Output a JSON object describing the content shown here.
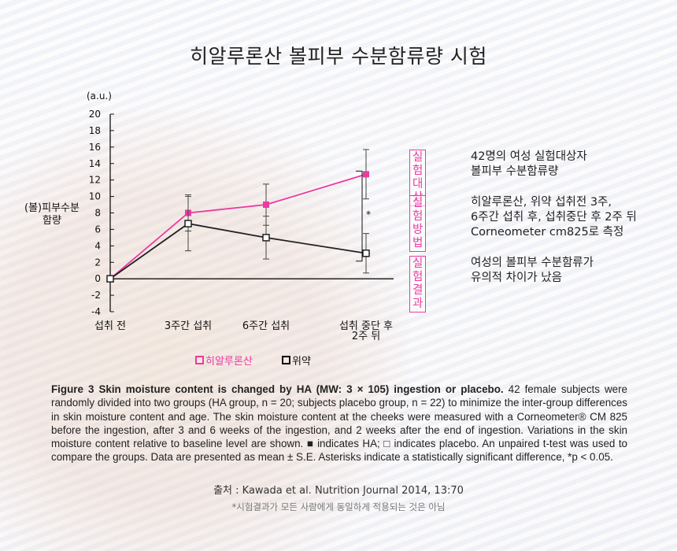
{
  "title": "히알루론산 볼피부 수분함류량 시험",
  "chart_data": {
    "type": "line",
    "categories": [
      "섭취 전",
      "3주간 섭취",
      "6주간 섭취",
      "섭취 중단 후\n2주 뒤"
    ],
    "series": [
      {
        "name": "히알루론산",
        "color": "#ec3aa0",
        "marker": "filled-square",
        "values": [
          0,
          8.0,
          9.0,
          12.7
        ],
        "error": [
          0,
          2.2,
          2.5,
          3.0
        ]
      },
      {
        "name": "위약",
        "color": "#222222",
        "marker": "open-square",
        "values": [
          0,
          6.7,
          5.0,
          3.1
        ],
        "error": [
          0,
          3.3,
          2.6,
          2.4
        ]
      }
    ],
    "ylabel": "(볼)피부수분\n함량",
    "yunit": "(a.u.)",
    "ylim": [
      -4,
      20
    ],
    "yticks": [
      -4,
      -2,
      0,
      2,
      4,
      6,
      8,
      10,
      12,
      14,
      16,
      18,
      20
    ],
    "significance": "*",
    "grid": false,
    "legend_position": "bottom"
  },
  "info": [
    {
      "tag": "실험대상",
      "text": "42명의 여성 실험대상자\n볼피부 수분함류량"
    },
    {
      "tag": "실험방법",
      "text": "히알루론산, 위약 섭취전 3주,\n6주간 섭취 후, 섭취중단 후 2주 뒤\nCorneometer cm825로 측정"
    },
    {
      "tag": "실험결과",
      "text": "여성의 볼피부 수분함류가\n유의적 차이가 났음"
    }
  ],
  "caption": {
    "bold": "Figure 3 Skin moisture content is changed by HA (MW: 3 × 105) ingestion or placebo.",
    "body": " 42 female subjects were randomly divided into two groups (HA group, n = 20; subjects placebo group, n = 22) to minimize the inter-group differences in skin moisture content and age. The skin moisture content at the cheeks were measured with a Corneometer® CM 825 before the ingestion, after 3 and 6 weeks of the ingestion, and 2 weeks after the end of ingestion. Variations in the skin moisture content relative to baseline level are shown. ■ indicates HA; □ indicates placebo. An unpaired t-test was used to compare the groups. Data are presented as mean ± S.E. Asterisks indicate a statistically significant difference, *p < 0.05."
  },
  "source": "출처 : Kawada et al. Nutrition Journal 2014, 13:70",
  "disclaimer": "*시험결과가 모든 사람에게 동일하게 적용되는 것은 아님"
}
